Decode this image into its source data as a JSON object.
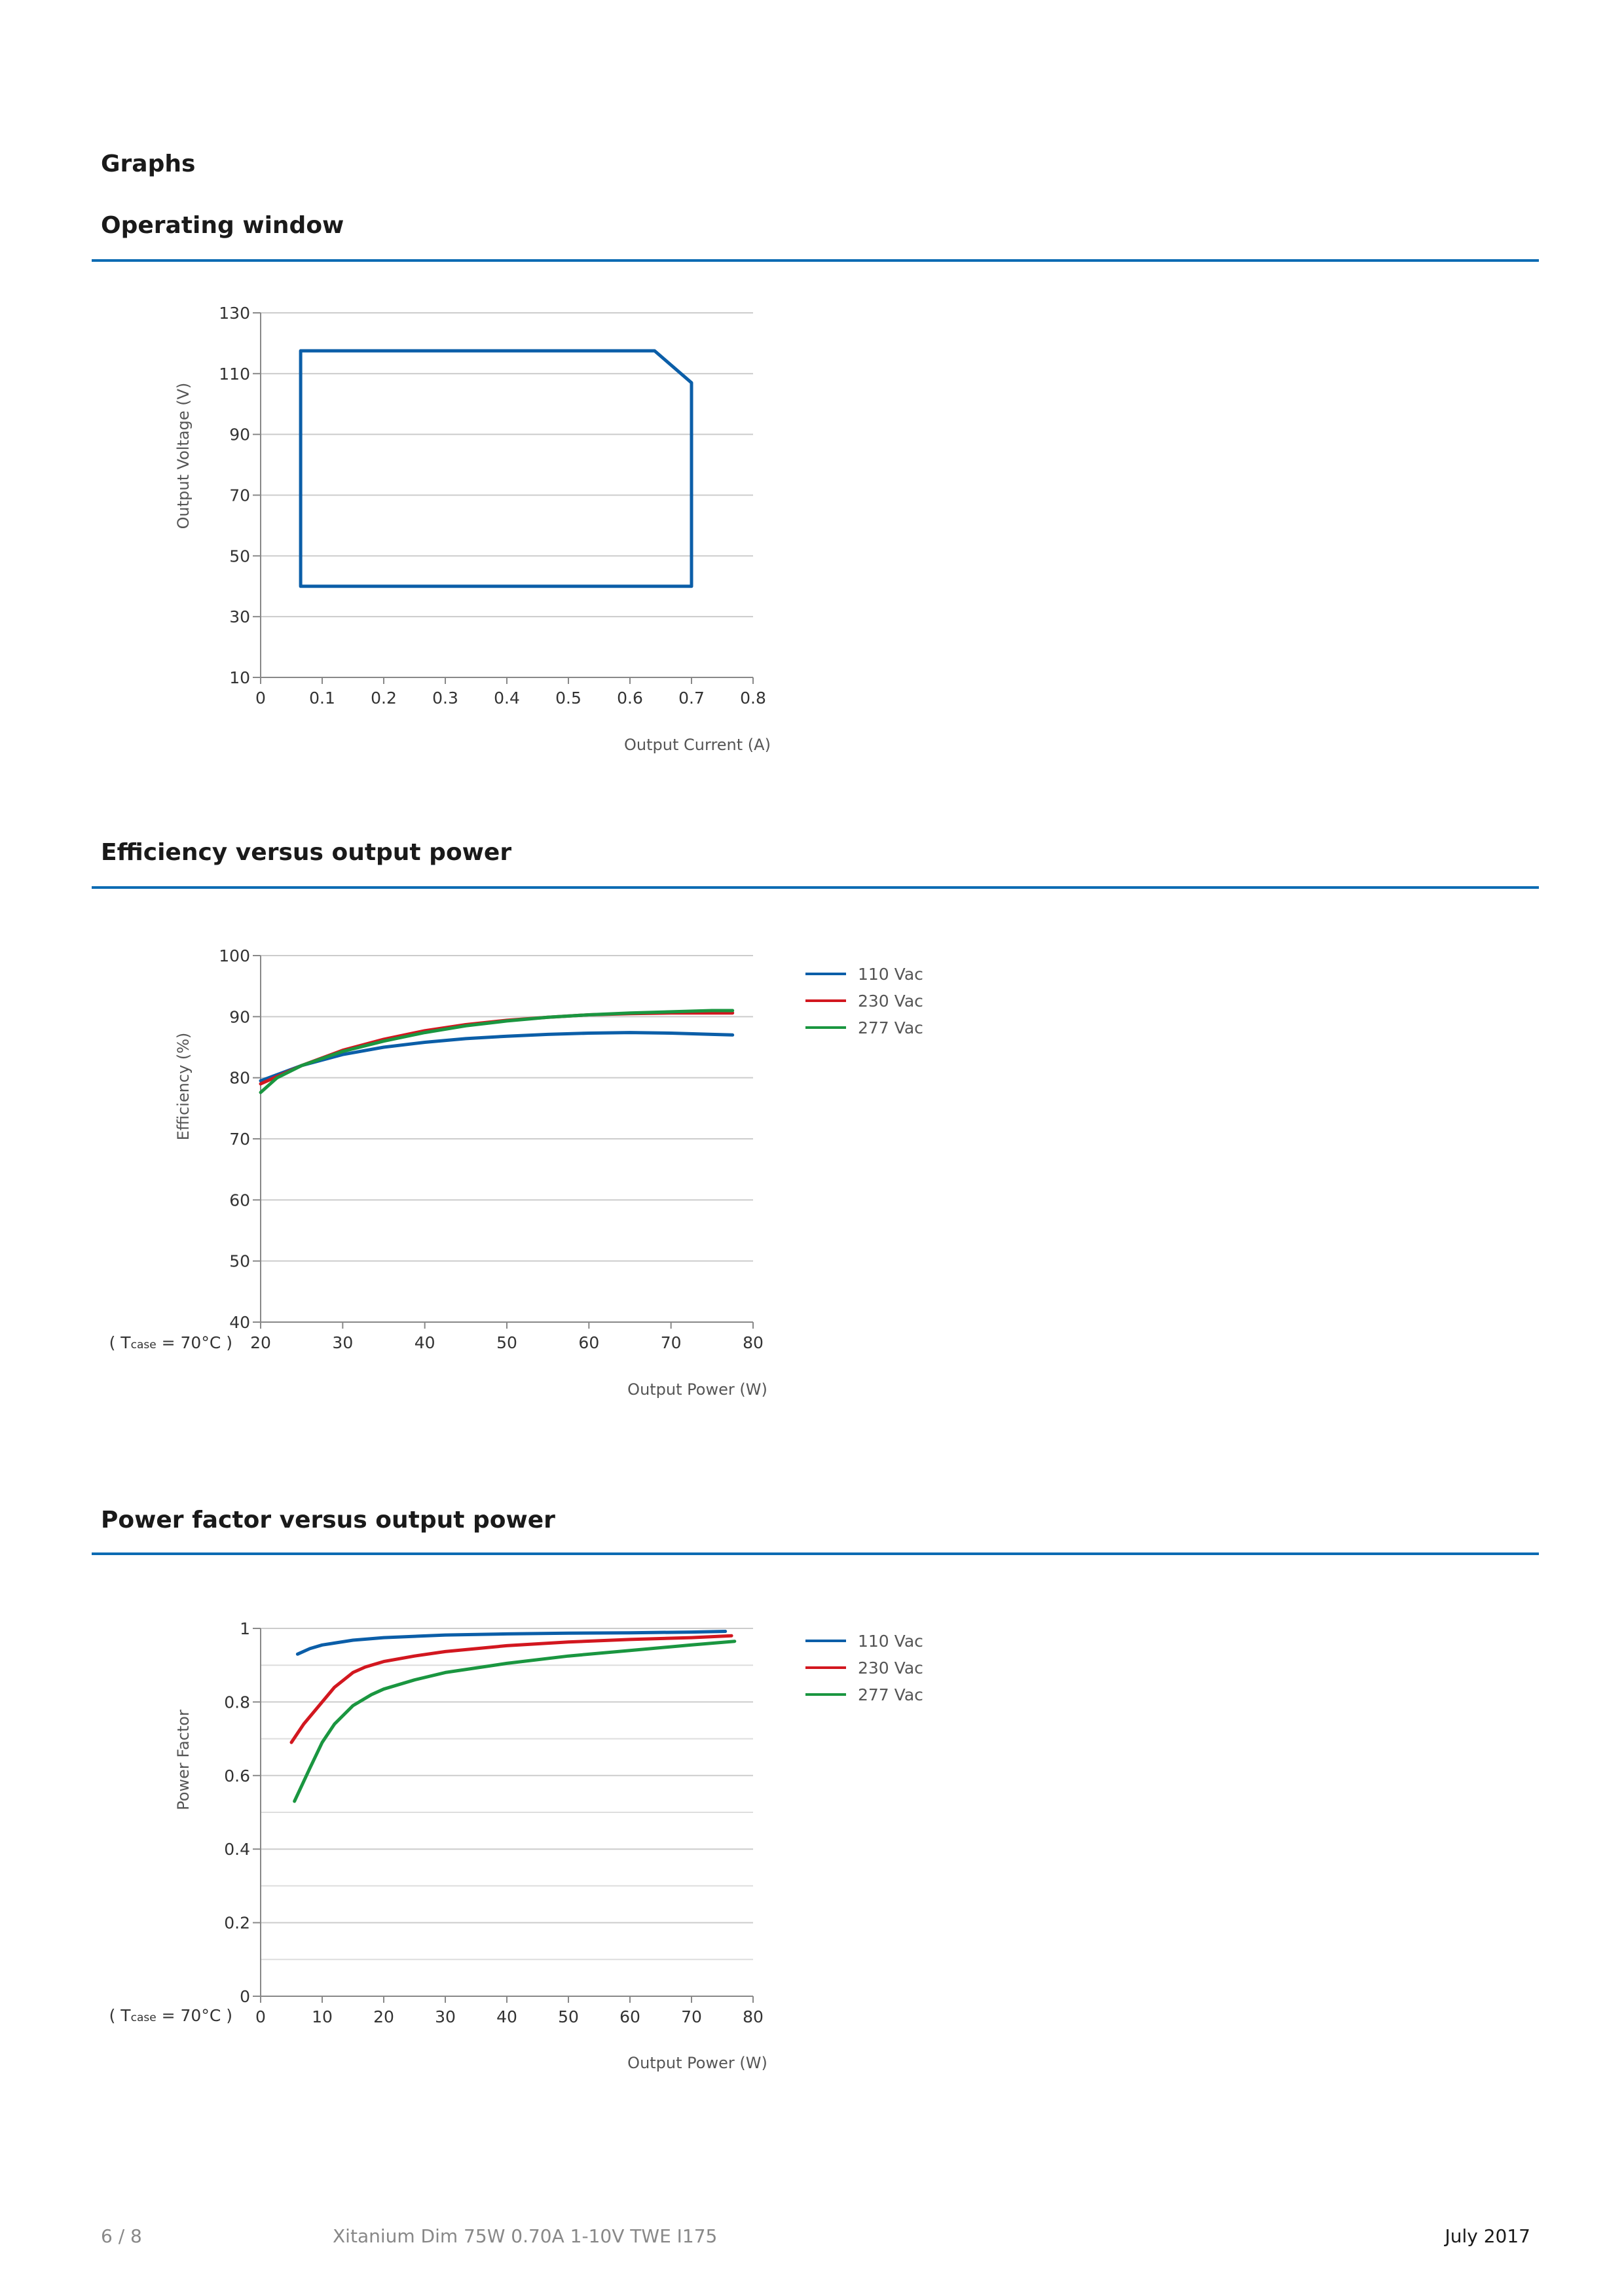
{
  "page": {
    "section_title": "Graphs",
    "footer": {
      "page": "6 / 8",
      "product": "Xitanium Dim 75W 0.70A 1-10V TWE I175",
      "date": "July 2017"
    }
  },
  "colors": {
    "rule": "#0b6bb3",
    "v110": "#0b5ea8",
    "v230": "#d2171f",
    "v277": "#1a9640",
    "grid": "#cccccc"
  },
  "chart_data": [
    {
      "id": "operating-window",
      "type": "line",
      "title": "Operating window",
      "xlabel": "Output Current (A)",
      "ylabel": "Output Voltage (V)",
      "xlim": [
        0,
        0.8
      ],
      "ylim": [
        10,
        130
      ],
      "xticks": [
        0,
        0.1,
        0.2,
        0.3,
        0.4,
        0.5,
        0.6,
        0.7,
        0.8
      ],
      "xtick_labels": [
        "0",
        "0.1",
        "0.2",
        "0.3",
        "0.4",
        "0.5",
        "0.6",
        "0.7",
        "0.8"
      ],
      "yticks": [
        10,
        30,
        50,
        70,
        90,
        110,
        130
      ],
      "ytick_labels": [
        "10",
        "30",
        "50",
        "70",
        "90",
        "110",
        "130"
      ],
      "grid": true,
      "series": [
        {
          "color": "#0b5ea8",
          "closed": true,
          "x": [
            0.065,
            0.065,
            0.64,
            0.7,
            0.7,
            0.065
          ],
          "y": [
            40,
            117.5,
            117.5,
            107,
            40,
            40
          ]
        }
      ]
    },
    {
      "id": "efficiency",
      "type": "line",
      "title": "Efficiency versus output power",
      "xlabel": "Output Power (W)",
      "ylabel": "Efficiency (%)",
      "condition": {
        "prefix": "( T",
        "sub": "case",
        "suffix": " = 70°C )"
      },
      "xlim": [
        20,
        80
      ],
      "ylim": [
        40,
        100
      ],
      "xticks": [
        20,
        30,
        40,
        50,
        60,
        70,
        80
      ],
      "xtick_labels": [
        "20",
        "30",
        "40",
        "50",
        "60",
        "70",
        "80"
      ],
      "yticks": [
        40,
        50,
        60,
        70,
        80,
        90,
        100
      ],
      "ytick_labels": [
        "40",
        "50",
        "60",
        "70",
        "80",
        "90",
        "100"
      ],
      "grid": true,
      "legend": "right",
      "series": [
        {
          "name": "110 Vac",
          "color": "#0b5ea8",
          "x": [
            20,
            25,
            30,
            35,
            40,
            45,
            50,
            55,
            60,
            65,
            70,
            75,
            77.5
          ],
          "y": [
            79.5,
            82,
            83.8,
            85,
            85.8,
            86.4,
            86.8,
            87.1,
            87.3,
            87.4,
            87.3,
            87.1,
            87
          ]
        },
        {
          "name": "230 Vac",
          "color": "#d2171f",
          "x": [
            20,
            25,
            30,
            35,
            40,
            45,
            50,
            55,
            60,
            65,
            70,
            75,
            77.5
          ],
          "y": [
            79,
            82,
            84.5,
            86.3,
            87.7,
            88.7,
            89.4,
            89.9,
            90.3,
            90.5,
            90.6,
            90.6,
            90.6
          ]
        },
        {
          "name": "277 Vac",
          "color": "#1a9640",
          "x": [
            20,
            22,
            25,
            30,
            35,
            40,
            45,
            50,
            55,
            60,
            65,
            70,
            75,
            77.5
          ],
          "y": [
            77.6,
            80,
            82,
            84.3,
            86,
            87.4,
            88.5,
            89.3,
            89.9,
            90.3,
            90.6,
            90.8,
            91,
            91
          ]
        }
      ]
    },
    {
      "id": "power-factor",
      "type": "line",
      "title": "Power factor versus output power",
      "xlabel": "Output Power (W)",
      "ylabel": "Power Factor",
      "condition": {
        "prefix": "( T",
        "sub": "case",
        "suffix": " = 70°C )"
      },
      "xlim": [
        0,
        80
      ],
      "ylim": [
        0,
        1
      ],
      "xticks": [
        0,
        10,
        20,
        30,
        40,
        50,
        60,
        70,
        80
      ],
      "xtick_labels": [
        "0",
        "10",
        "20",
        "30",
        "40",
        "50",
        "60",
        "70",
        "80"
      ],
      "yticks": [
        0,
        0.2,
        0.4,
        0.6,
        0.8,
        1
      ],
      "ytick_labels": [
        "0",
        "0.2",
        "0.4",
        "0.6",
        "0.8",
        "1"
      ],
      "minor_yticks": [
        0.1,
        0.3,
        0.5,
        0.7,
        0.9
      ],
      "grid": true,
      "legend": "right",
      "series": [
        {
          "name": "110 Vac",
          "color": "#0b5ea8",
          "x": [
            6,
            8,
            10,
            15,
            20,
            30,
            40,
            50,
            60,
            70,
            75.5
          ],
          "y": [
            0.93,
            0.945,
            0.955,
            0.968,
            0.975,
            0.982,
            0.985,
            0.987,
            0.988,
            0.99,
            0.992
          ]
        },
        {
          "name": "230 Vac",
          "color": "#d2171f",
          "x": [
            5,
            7,
            10,
            12,
            15,
            17,
            20,
            25,
            30,
            40,
            50,
            60,
            70,
            76.5
          ],
          "y": [
            0.69,
            0.74,
            0.8,
            0.84,
            0.88,
            0.895,
            0.91,
            0.925,
            0.937,
            0.953,
            0.963,
            0.97,
            0.975,
            0.98
          ]
        },
        {
          "name": "277 Vac",
          "color": "#1a9640",
          "x": [
            5.5,
            8,
            10,
            12,
            15,
            18,
            20,
            25,
            30,
            40,
            50,
            60,
            70,
            77
          ],
          "y": [
            0.53,
            0.62,
            0.69,
            0.74,
            0.79,
            0.82,
            0.835,
            0.86,
            0.88,
            0.905,
            0.925,
            0.94,
            0.955,
            0.965
          ]
        }
      ]
    }
  ]
}
